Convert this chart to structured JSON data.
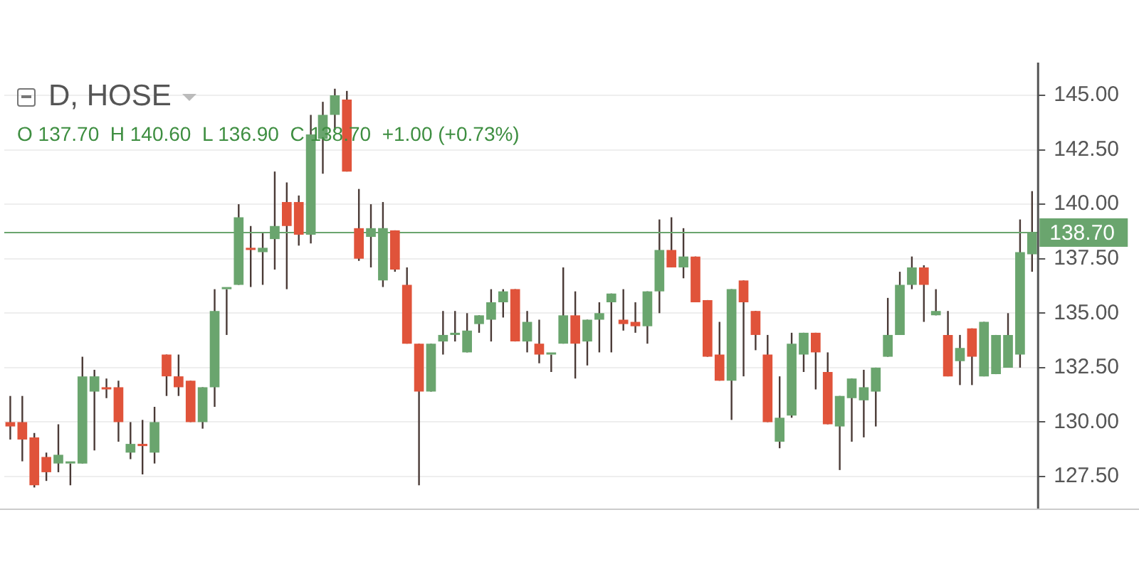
{
  "chart_data": {
    "type": "candlestick",
    "title": "D, HOSE",
    "subtitle": "O 137.70  H 140.60  L 136.90  C 138.70  +1.00 (+0.73%)",
    "categories": [
      null,
      null,
      null,
      null,
      null,
      null,
      null,
      null,
      null,
      null,
      null,
      null,
      null,
      null,
      null,
      null,
      null,
      null,
      null,
      null,
      null,
      null,
      null,
      null,
      null,
      null,
      null,
      null,
      null,
      null,
      null,
      null,
      null,
      null,
      null,
      null,
      null,
      null,
      null,
      null,
      null,
      null,
      null,
      null,
      null,
      null,
      null,
      null,
      null,
      null,
      null,
      null,
      null,
      null,
      null,
      null,
      null,
      null,
      null,
      null,
      null,
      null,
      null,
      null,
      null,
      null,
      null,
      null,
      null,
      null,
      null,
      null,
      null,
      null,
      null,
      null,
      null,
      null,
      null,
      null,
      null,
      null,
      null,
      null,
      null,
      null
    ],
    "ohlc": [
      [
        130.0,
        131.2,
        129.2,
        129.8
      ],
      [
        130.0,
        131.2,
        128.2,
        129.2
      ],
      [
        129.3,
        129.5,
        127.0,
        127.1
      ],
      [
        128.4,
        128.6,
        127.3,
        127.7
      ],
      [
        128.1,
        129.9,
        127.7,
        128.5
      ],
      [
        128.1,
        128.1,
        127.1,
        128.1
      ],
      [
        128.1,
        133.0,
        128.1,
        132.1
      ],
      [
        131.4,
        132.4,
        128.7,
        132.1
      ],
      [
        131.6,
        132.0,
        131.1,
        131.5
      ],
      [
        131.6,
        131.9,
        129.1,
        130.0
      ],
      [
        128.6,
        130.0,
        128.3,
        129.0
      ],
      [
        129.0,
        130.1,
        127.6,
        128.9
      ],
      [
        128.6,
        130.7,
        128.1,
        130.0
      ],
      [
        133.1,
        133.1,
        131.2,
        132.1
      ],
      [
        132.1,
        133.1,
        131.2,
        131.6
      ],
      [
        131.9,
        131.9,
        130.0,
        130.0
      ],
      [
        130.0,
        131.6,
        129.7,
        131.6
      ],
      [
        131.6,
        136.1,
        130.7,
        135.1
      ],
      [
        136.1,
        136.1,
        134.0,
        136.1
      ],
      [
        136.3,
        140.0,
        136.3,
        139.4
      ],
      [
        138.0,
        139.0,
        136.2,
        137.9
      ],
      [
        137.8,
        138.7,
        136.3,
        138.0
      ],
      [
        138.4,
        141.5,
        137.0,
        139.0
      ],
      [
        140.1,
        141.0,
        136.1,
        139.0
      ],
      [
        140.1,
        140.4,
        138.1,
        138.6
      ],
      [
        138.6,
        144.1,
        138.2,
        143.2
      ],
      [
        143.0,
        144.7,
        141.4,
        144.1
      ],
      [
        144.1,
        145.3,
        143.4,
        145.0
      ],
      [
        144.8,
        145.2,
        141.5,
        141.5
      ],
      [
        138.9,
        140.7,
        137.4,
        137.5
      ],
      [
        138.5,
        140.0,
        137.1,
        138.9
      ],
      [
        136.5,
        140.1,
        136.2,
        138.9
      ],
      [
        138.8,
        138.8,
        136.9,
        137.0
      ],
      [
        136.3,
        137.1,
        133.6,
        133.6
      ],
      [
        133.6,
        133.6,
        127.1,
        131.4
      ],
      [
        131.4,
        133.6,
        131.4,
        133.6
      ],
      [
        133.7,
        135.1,
        133.1,
        134.0
      ],
      [
        134.0,
        135.1,
        133.7,
        134.1
      ],
      [
        133.2,
        135.0,
        133.2,
        134.2
      ],
      [
        134.5,
        134.9,
        134.1,
        134.9
      ],
      [
        134.7,
        136.1,
        133.7,
        135.5
      ],
      [
        135.5,
        136.1,
        134.8,
        136.0
      ],
      [
        136.1,
        136.1,
        133.7,
        133.7
      ],
      [
        133.7,
        135.1,
        133.2,
        134.6
      ],
      [
        133.6,
        134.7,
        132.7,
        133.1
      ],
      [
        133.1,
        133.1,
        132.3,
        133.1
      ],
      [
        133.6,
        137.1,
        133.6,
        134.9
      ],
      [
        134.9,
        136.0,
        132.0,
        133.6
      ],
      [
        133.7,
        134.7,
        132.6,
        134.7
      ],
      [
        134.7,
        135.5,
        133.2,
        135.0
      ],
      [
        135.5,
        135.9,
        133.2,
        135.9
      ],
      [
        134.7,
        136.1,
        134.2,
        134.5
      ],
      [
        134.6,
        135.5,
        134.1,
        134.4
      ],
      [
        134.4,
        136.0,
        133.6,
        136.0
      ],
      [
        136.0,
        139.3,
        135.0,
        137.9
      ],
      [
        137.9,
        139.4,
        137.1,
        137.1
      ],
      [
        137.1,
        138.9,
        136.6,
        137.6
      ],
      [
        137.6,
        137.6,
        135.5,
        135.5
      ],
      [
        135.6,
        135.6,
        133.0,
        133.0
      ],
      [
        133.1,
        134.6,
        131.9,
        131.9
      ],
      [
        131.9,
        136.1,
        130.1,
        136.1
      ],
      [
        136.5,
        136.5,
        132.1,
        135.5
      ],
      [
        135.1,
        135.1,
        133.3,
        134.0
      ],
      [
        133.1,
        134.0,
        130.0,
        130.0
      ],
      [
        129.1,
        132.1,
        128.8,
        130.2
      ],
      [
        130.3,
        134.1,
        130.2,
        133.6
      ],
      [
        133.1,
        134.1,
        132.3,
        134.1
      ],
      [
        134.1,
        134.1,
        131.5,
        133.2
      ],
      [
        132.3,
        133.2,
        129.9,
        129.9
      ],
      [
        129.8,
        131.2,
        127.8,
        131.2
      ],
      [
        131.1,
        132.0,
        129.1,
        132.0
      ],
      [
        131.0,
        132.4,
        129.3,
        131.6
      ],
      [
        131.4,
        132.5,
        129.8,
        132.5
      ],
      [
        133.0,
        135.7,
        133.0,
        134.0
      ],
      [
        134.0,
        136.9,
        134.0,
        136.3
      ],
      [
        136.3,
        137.6,
        136.1,
        137.1
      ],
      [
        137.1,
        137.2,
        134.6,
        136.3
      ],
      [
        134.9,
        136.1,
        134.9,
        135.1
      ],
      [
        134.0,
        135.1,
        132.1,
        132.1
      ],
      [
        132.8,
        134.0,
        131.7,
        133.4
      ],
      [
        134.3,
        134.3,
        131.7,
        133.0
      ],
      [
        132.1,
        134.6,
        132.1,
        134.6
      ],
      [
        132.2,
        134.0,
        132.2,
        134.0
      ],
      [
        132.5,
        135.0,
        132.5,
        134.0
      ],
      [
        133.1,
        139.3,
        132.5,
        137.8
      ],
      [
        137.7,
        140.6,
        136.9,
        138.7
      ]
    ],
    "colors": [
      "#e0533a",
      "#e0533a",
      "#e0533a",
      "#e0533a",
      "#6aa56e",
      "#6aa56e",
      "#6aa56e",
      "#6aa56e",
      "#e0533a",
      "#e0533a",
      "#6aa56e",
      "#e0533a",
      "#6aa56e",
      "#e0533a",
      "#e0533a",
      "#e0533a",
      "#6aa56e",
      "#6aa56e",
      "#6aa56e",
      "#6aa56e",
      "#e0533a",
      "#6aa56e",
      "#6aa56e",
      "#e0533a",
      "#e0533a",
      "#6aa56e",
      "#6aa56e",
      "#6aa56e",
      "#e0533a",
      "#e0533a",
      "#6aa56e",
      "#6aa56e",
      "#e0533a",
      "#e0533a",
      "#e0533a",
      "#6aa56e",
      "#6aa56e",
      "#6aa56e",
      "#6aa56e",
      "#6aa56e",
      "#6aa56e",
      "#6aa56e",
      "#e0533a",
      "#6aa56e",
      "#e0533a",
      "#6aa56e",
      "#6aa56e",
      "#e0533a",
      "#6aa56e",
      "#6aa56e",
      "#6aa56e",
      "#e0533a",
      "#e0533a",
      "#6aa56e",
      "#6aa56e",
      "#e0533a",
      "#6aa56e",
      "#e0533a",
      "#e0533a",
      "#e0533a",
      "#6aa56e",
      "#e0533a",
      "#e0533a",
      "#e0533a",
      "#6aa56e",
      "#6aa56e",
      "#6aa56e",
      "#e0533a",
      "#e0533a",
      "#6aa56e",
      "#6aa56e",
      "#6aa56e",
      "#6aa56e",
      "#6aa56e",
      "#6aa56e",
      "#6aa56e",
      "#e0533a",
      "#6aa56e",
      "#e0533a",
      "#6aa56e",
      "#e0533a",
      "#6aa56e",
      "#6aa56e",
      "#6aa56e",
      "#6aa56e",
      "#6aa56e"
    ],
    "ylim": [
      126,
      146.5
    ],
    "yticks": [
      {
        "value": 127.5,
        "label": "127.50"
      },
      {
        "value": 130,
        "label": "130.00"
      },
      {
        "value": 132.5,
        "label": "132.50"
      },
      {
        "value": 135,
        "label": "135.00"
      },
      {
        "value": 137.5,
        "label": "137.50"
      },
      {
        "value": 140,
        "label": "140.00"
      },
      {
        "value": 142.5,
        "label": "142.50"
      },
      {
        "value": 145,
        "label": "145.00"
      }
    ],
    "grid": "y",
    "tick_labels": "y",
    "ref_lines": [
      {
        "axis": "y",
        "value": 138.7,
        "label": "138.70",
        "color": "#6aa56e"
      }
    ]
  }
}
